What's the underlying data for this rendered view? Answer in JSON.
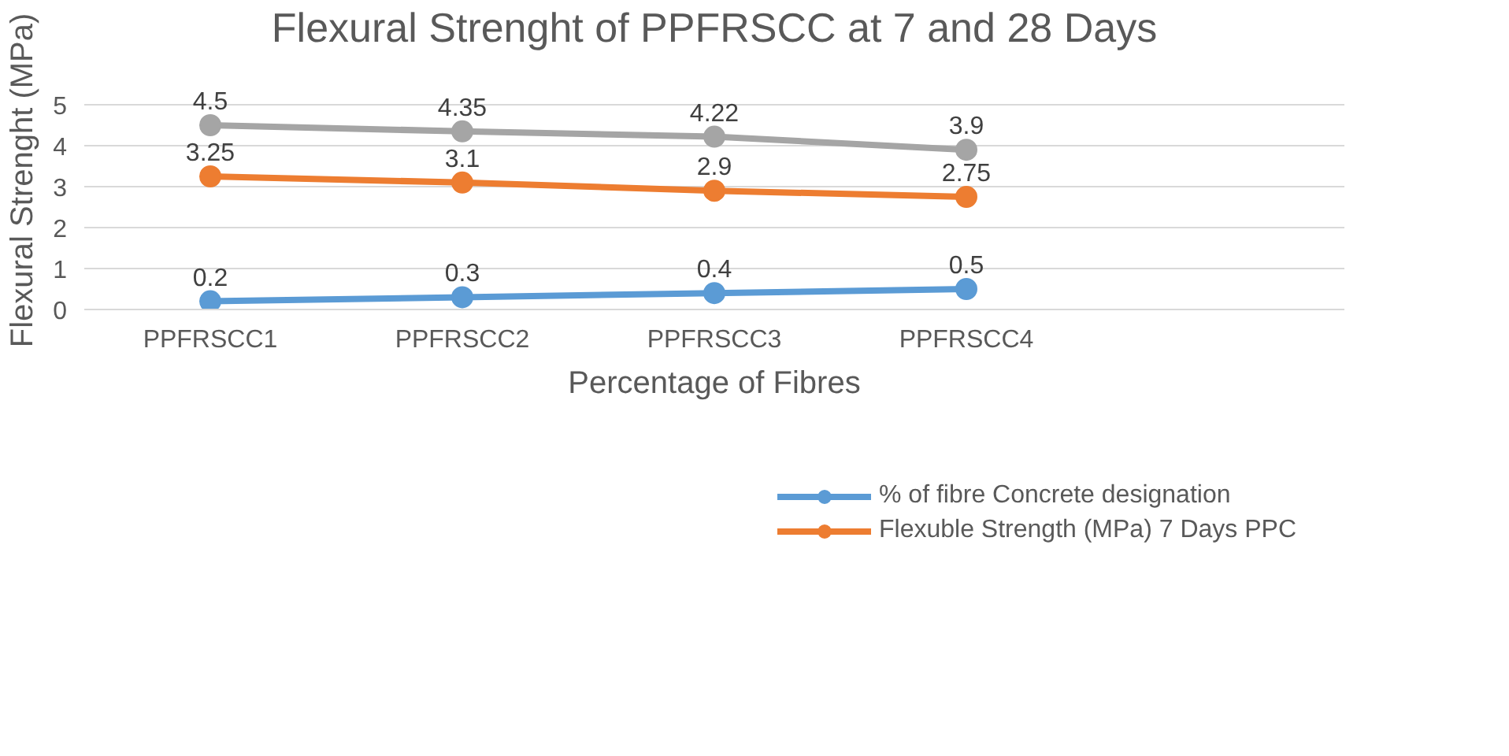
{
  "chart_data": {
    "type": "line",
    "title": "Flexural Strenght of PPFRSCC at 7 and 28 Days",
    "xlabel": "Percentage of Fibres",
    "ylabel": "Flexural Strenght (MPa)",
    "categories": [
      "PPFRSCC1",
      "PPFRSCC2",
      "PPFRSCC3",
      "PPFRSCC4",
      null
    ],
    "series": [
      {
        "name": "% of fibre Concrete designation",
        "color": "#5b9bd5",
        "values": [
          0.2,
          0.3,
          0.4,
          0.5,
          null
        ]
      },
      {
        "name": "Flexuble Strength (MPa) 7 Days PPC",
        "color": "#ed7d31",
        "values": [
          3.25,
          3.1,
          2.9,
          2.75,
          null
        ]
      },
      {
        "color": "#a5a5a5",
        "values": [
          4.5,
          4.35,
          4.22,
          3.9,
          null
        ]
      }
    ],
    "ylim": [
      0,
      5
    ],
    "yticks": [
      0,
      1,
      2,
      3,
      4,
      5
    ],
    "grid": "y",
    "legend": "bottom",
    "marker": "circle",
    "line_style": "solid",
    "data_labels": true
  }
}
